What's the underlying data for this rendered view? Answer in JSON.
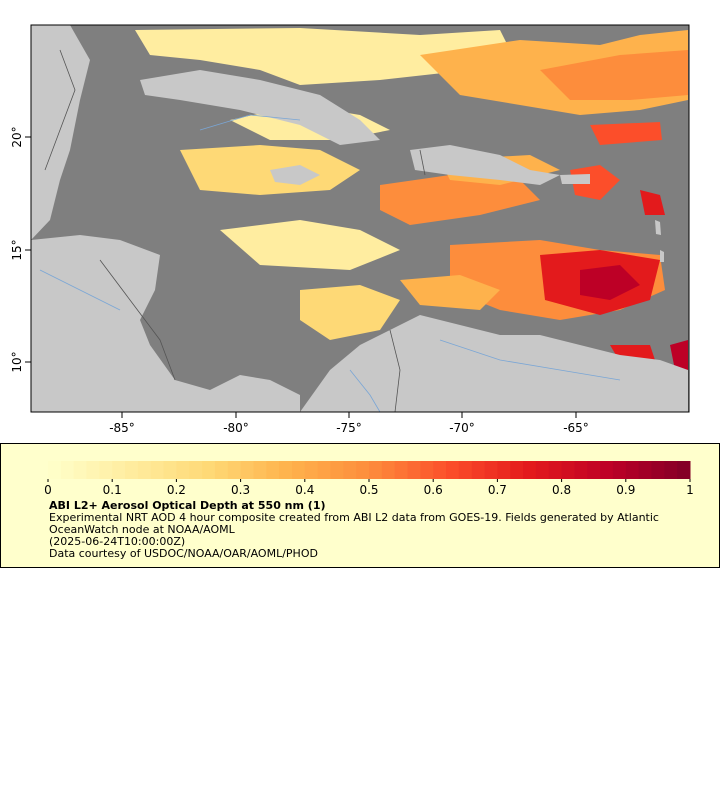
{
  "map": {
    "lon_ticks": [
      "-85°",
      "-80°",
      "-75°",
      "-70°",
      "-65°"
    ],
    "lat_ticks": [
      "20°",
      "15°",
      "10°"
    ],
    "colors": {
      "ocean": "#7f7f7f",
      "land": "#c8c8c8",
      "rivers": "#7aa6d6",
      "borders": "#555555",
      "lakes": "#c8c8c8"
    }
  },
  "legend": {
    "ticks": [
      "0",
      "0.1",
      "0.2",
      "0.3",
      "0.4",
      "0.5",
      "0.6",
      "0.7",
      "0.8",
      "0.9",
      "1"
    ],
    "range": [
      0,
      1
    ],
    "colormap": [
      "#ffffcc",
      "#ffeda0",
      "#fed976",
      "#feb24c",
      "#fd8d3c",
      "#fc4e2a",
      "#e31a1c",
      "#bd0026",
      "#800026"
    ],
    "title": "ABI L2+ Aerosol Optical Depth at 550 nm (1)",
    "line1": "Experimental NRT AOD 4 hour composite created from ABI L2 data from GOES-19. Fields generated by Atlantic OceanWatch node at NOAA/AOML",
    "line2": "(2025-06-24T10:00:00Z)",
    "line3": "Data courtesy of USDOC/NOAA/OAR/AOML/PHOD"
  }
}
